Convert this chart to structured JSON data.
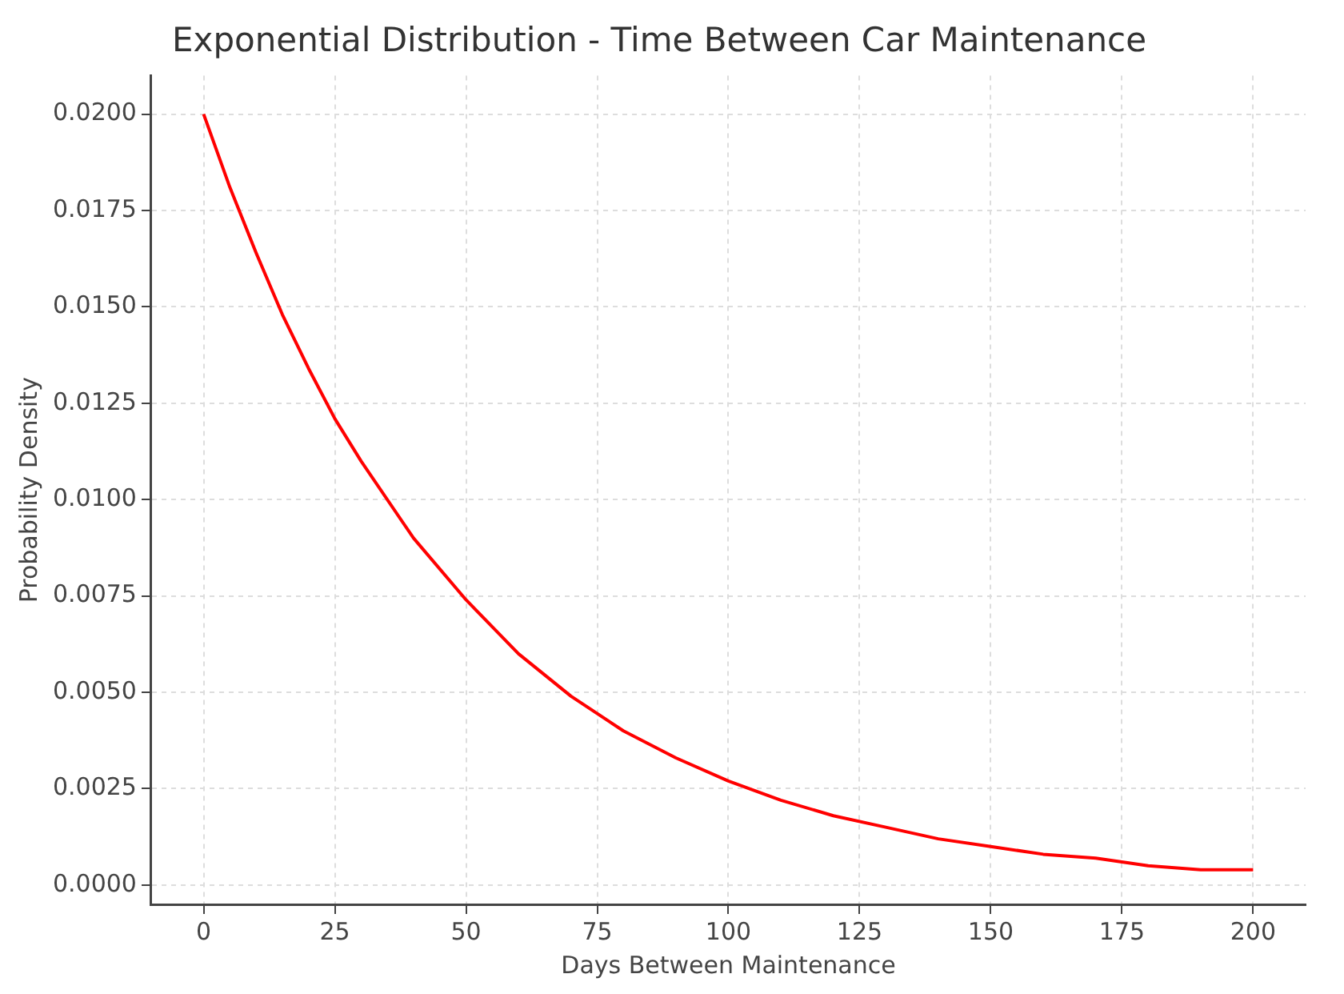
{
  "chart_data": {
    "type": "line",
    "title": "Exponential Distribution - Time Between Car Maintenance",
    "xlabel": "Days Between Maintenance",
    "ylabel": "Probability Density",
    "x": [
      0,
      5,
      10,
      15,
      20,
      25,
      30,
      40,
      50,
      60,
      70,
      80,
      90,
      100,
      110,
      120,
      130,
      140,
      150,
      160,
      170,
      180,
      190,
      200
    ],
    "series": [
      {
        "color": "#ff0000",
        "values": [
          0.02,
          0.0181,
          0.0164,
          0.0148,
          0.0134,
          0.0121,
          0.011,
          0.009,
          0.0074,
          0.006,
          0.0049,
          0.004,
          0.0033,
          0.0027,
          0.0022,
          0.0018,
          0.0015,
          0.0012,
          0.001,
          0.0008,
          0.0007,
          0.0005,
          0.0004,
          0.0004
        ]
      }
    ],
    "xlim": [
      -10,
      210
    ],
    "xticks": [
      0,
      25,
      50,
      75,
      100,
      125,
      150,
      175,
      200
    ],
    "ylim": [
      -0.0005,
      0.021
    ],
    "yticks": [
      {
        "value": 0,
        "label": "0.0000"
      },
      {
        "value": 0.0025,
        "label": "0.0025"
      },
      {
        "value": 0.005,
        "label": "0.0050"
      },
      {
        "value": 0.0075,
        "label": "0.0075"
      },
      {
        "value": 0.01,
        "label": "0.0100"
      },
      {
        "value": 0.0125,
        "label": "0.0125"
      },
      {
        "value": 0.015,
        "label": "0.0150"
      },
      {
        "value": 0.0175,
        "label": "0.0175"
      },
      {
        "value": 0.02,
        "label": "0.0200"
      }
    ],
    "grid": true,
    "legend": false,
    "marker": "none",
    "line_style": "solid"
  }
}
